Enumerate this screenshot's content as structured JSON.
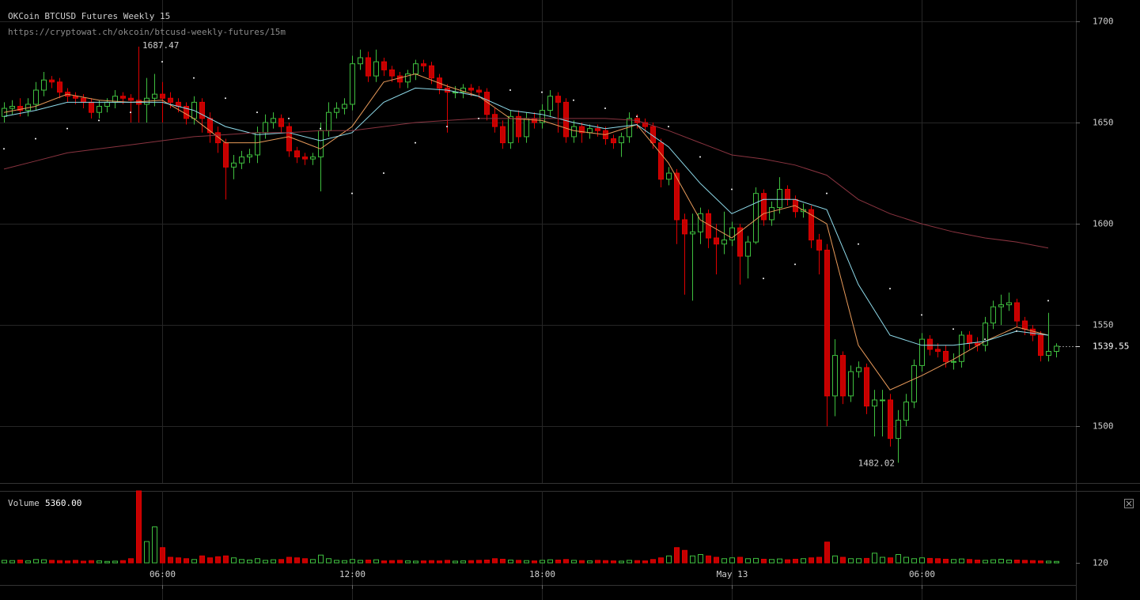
{
  "chart_data": [
    {
      "type": "candlestick",
      "title": "OKCoin BTCUSD Futures Weekly 15",
      "subtitle": "https://cryptowat.ch/okcoin/btcusd-weekly-futures/15m",
      "up_color": "#3fbf3f",
      "down_color": "#c40000",
      "xlim": [
        0.875,
        34.875
      ],
      "xticks": [
        {
          "value": 6,
          "label": "06:00"
        },
        {
          "value": 12,
          "label": "12:00"
        },
        {
          "value": 18,
          "label": "18:00"
        },
        {
          "value": 24,
          "label": "May 13"
        },
        {
          "value": 30,
          "label": "06:00"
        }
      ],
      "ylim": [
        1472,
        1710.5
      ],
      "yticks": [
        1500,
        1550,
        1600,
        1650,
        1700
      ],
      "grid": true,
      "x": [
        1,
        1.25,
        1.5,
        1.75,
        2,
        2.25,
        2.5,
        2.75,
        3,
        3.25,
        3.5,
        3.75,
        4,
        4.25,
        4.5,
        4.75,
        5,
        5.25,
        5.5,
        5.75,
        6,
        6.25,
        6.5,
        6.75,
        7,
        7.25,
        7.5,
        7.75,
        8,
        8.25,
        8.5,
        8.75,
        9,
        9.25,
        9.5,
        9.75,
        10,
        10.25,
        10.5,
        10.75,
        11,
        11.25,
        11.5,
        11.75,
        12,
        12.25,
        12.5,
        12.75,
        13,
        13.25,
        13.5,
        13.75,
        14,
        14.25,
        14.5,
        14.75,
        15,
        15.25,
        15.5,
        15.75,
        16,
        16.25,
        16.5,
        16.75,
        17,
        17.25,
        17.5,
        17.75,
        18,
        18.25,
        18.5,
        18.75,
        19,
        19.25,
        19.5,
        19.75,
        20,
        20.25,
        20.5,
        20.75,
        21,
        21.25,
        21.5,
        21.75,
        22,
        22.25,
        22.5,
        22.75,
        23,
        23.25,
        23.5,
        23.75,
        24,
        24.25,
        24.5,
        24.75,
        25,
        25.25,
        25.5,
        25.75,
        26,
        26.25,
        26.5,
        26.75,
        27,
        27.25,
        27.5,
        27.75,
        28,
        28.25,
        28.5,
        28.75,
        29,
        29.25,
        29.5,
        29.75,
        30,
        30.25,
        30.5,
        30.75,
        31,
        31.25,
        31.5,
        31.75,
        32,
        32.25,
        32.5,
        32.75,
        33,
        33.25,
        33.5,
        33.75,
        34,
        34.25
      ],
      "open": [
        1653,
        1657,
        1658,
        1656,
        1659,
        1666,
        1671,
        1670,
        1665,
        1663,
        1662,
        1660,
        1655,
        1658,
        1660,
        1663,
        1662,
        1661,
        1659,
        1662,
        1664,
        1662,
        1660,
        1658,
        1652,
        1660,
        1652,
        1645,
        1640,
        1628,
        1630,
        1633,
        1634,
        1645,
        1650,
        1652,
        1648,
        1636,
        1633,
        1632,
        1633,
        1646,
        1655,
        1657,
        1659,
        1679,
        1682,
        1673,
        1680,
        1676,
        1673,
        1670,
        1674,
        1679,
        1678,
        1672,
        1667,
        1665,
        1665,
        1667,
        1666,
        1665,
        1654,
        1648,
        1640,
        1653,
        1643,
        1652,
        1650,
        1656,
        1663,
        1660,
        1643,
        1648,
        1645,
        1647,
        1646,
        1642,
        1640,
        1643,
        1652,
        1650,
        1648,
        1640,
        1622,
        1625,
        1602,
        1595,
        1596,
        1605,
        1593,
        1590,
        1592,
        1598,
        1584,
        1591,
        1615,
        1602,
        1608,
        1617,
        1612,
        1606,
        1607,
        1592,
        1587,
        1515,
        1535,
        1515,
        1527,
        1529,
        1510,
        1513,
        1513,
        1494,
        1503,
        1512,
        1530,
        1543,
        1538,
        1537,
        1532,
        1532,
        1545,
        1541,
        1540,
        1551,
        1559,
        1560,
        1561,
        1552,
        1548,
        1545,
        1535,
        1537
      ],
      "high": [
        1660,
        1661,
        1662,
        1662,
        1670,
        1675,
        1673,
        1672,
        1667,
        1665,
        1664,
        1662,
        1661,
        1662,
        1666,
        1665,
        1664,
        1687.47,
        1672,
        1674,
        1670,
        1665,
        1662,
        1660,
        1663,
        1662,
        1655,
        1648,
        1642,
        1634,
        1636,
        1637,
        1648,
        1654,
        1655,
        1654,
        1650,
        1638,
        1635,
        1635,
        1650,
        1660,
        1660,
        1662,
        1683,
        1686,
        1685,
        1686,
        1682,
        1678,
        1675,
        1676,
        1681,
        1681,
        1680,
        1674,
        1669,
        1668,
        1669,
        1669,
        1668,
        1667,
        1657,
        1651,
        1656,
        1656,
        1655,
        1655,
        1659,
        1666,
        1665,
        1662,
        1651,
        1650,
        1649,
        1649,
        1648,
        1644,
        1645,
        1655,
        1654,
        1652,
        1650,
        1642,
        1628,
        1627,
        1605,
        1605,
        1608,
        1607,
        1600,
        1606,
        1601,
        1600,
        1594,
        1618,
        1617,
        1611,
        1623,
        1619,
        1614,
        1610,
        1609,
        1595,
        1590,
        1543,
        1537,
        1530,
        1532,
        1531,
        1518,
        1518,
        1516,
        1508,
        1516,
        1533,
        1546,
        1545,
        1541,
        1540,
        1536,
        1547,
        1547,
        1544,
        1554,
        1562,
        1565,
        1566,
        1563,
        1554,
        1550,
        1547,
        1556,
        1541
      ],
      "low": [
        1650,
        1654,
        1653,
        1653,
        1656,
        1663,
        1667,
        1662,
        1660,
        1659,
        1657,
        1652,
        1652,
        1655,
        1657,
        1659,
        1650,
        1650,
        1650,
        1658,
        1650,
        1657,
        1655,
        1649,
        1649,
        1645,
        1640,
        1635,
        1612,
        1622,
        1627,
        1630,
        1630,
        1642,
        1647,
        1645,
        1633,
        1630,
        1629,
        1629,
        1616,
        1643,
        1652,
        1654,
        1656,
        1676,
        1670,
        1670,
        1673,
        1670,
        1667,
        1667,
        1671,
        1675,
        1669,
        1664,
        1645,
        1662,
        1662,
        1663,
        1662,
        1651,
        1645,
        1637,
        1637,
        1640,
        1640,
        1647,
        1647,
        1653,
        1645,
        1640,
        1640,
        1640,
        1642,
        1643,
        1639,
        1637,
        1633,
        1640,
        1647,
        1645,
        1637,
        1618,
        1619,
        1590,
        1565,
        1562,
        1590,
        1588,
        1575,
        1585,
        1589,
        1570,
        1573,
        1590,
        1599,
        1599,
        1605,
        1609,
        1603,
        1603,
        1588,
        1575,
        1500,
        1505,
        1511,
        1512,
        1524,
        1506,
        1495,
        1495,
        1490,
        1482.02,
        1500,
        1509,
        1527,
        1535,
        1534,
        1529,
        1528,
        1529,
        1538,
        1537,
        1537,
        1548,
        1550,
        1557,
        1549,
        1545,
        1542,
        1532,
        1532,
        1534
      ],
      "close": [
        1657,
        1658,
        1656,
        1659,
        1666,
        1671,
        1670,
        1665,
        1663,
        1662,
        1660,
        1655,
        1658,
        1660,
        1663,
        1662,
        1661,
        1659,
        1662,
        1664,
        1662,
        1660,
        1658,
        1652,
        1660,
        1652,
        1645,
        1640,
        1628,
        1630,
        1633,
        1634,
        1645,
        1650,
        1652,
        1648,
        1636,
        1633,
        1632,
        1633,
        1646,
        1655,
        1657,
        1659,
        1679,
        1682,
        1673,
        1680,
        1676,
        1673,
        1670,
        1674,
        1679,
        1678,
        1672,
        1667,
        1665,
        1665,
        1667,
        1666,
        1665,
        1654,
        1648,
        1640,
        1653,
        1643,
        1652,
        1650,
        1656,
        1663,
        1660,
        1643,
        1648,
        1645,
        1647,
        1646,
        1642,
        1640,
        1643,
        1652,
        1650,
        1648,
        1640,
        1622,
        1625,
        1602,
        1595,
        1596,
        1605,
        1593,
        1590,
        1592,
        1598,
        1584,
        1591,
        1615,
        1602,
        1608,
        1617,
        1612,
        1606,
        1607,
        1592,
        1587,
        1515,
        1535,
        1515,
        1527,
        1529,
        1510,
        1513,
        1513,
        1494,
        1503,
        1512,
        1530,
        1543,
        1538,
        1537,
        1532,
        1532,
        1545,
        1541,
        1540,
        1551,
        1559,
        1560,
        1561,
        1552,
        1548,
        1545,
        1535,
        1537,
        1539.55
      ],
      "overlays": [
        {
          "type": "line",
          "color": "#e89a5a",
          "x": [
            1,
            2,
            3,
            4,
            5,
            6,
            7,
            8,
            9,
            10,
            11,
            12,
            13,
            14,
            15,
            16,
            17,
            18,
            19,
            20,
            21,
            22,
            23,
            24,
            25,
            26,
            27,
            28,
            29,
            30,
            31,
            32,
            33,
            34
          ],
          "values": [
            1655,
            1658,
            1664,
            1661,
            1660,
            1661,
            1652,
            1640,
            1640,
            1643,
            1637,
            1648,
            1670,
            1674,
            1668,
            1663,
            1652,
            1651,
            1646,
            1644,
            1649,
            1630,
            1602,
            1593,
            1605,
            1609,
            1600,
            1540,
            1518,
            1525,
            1533,
            1542,
            1549,
            1545
          ]
        },
        {
          "type": "line",
          "color": "#8fdcec",
          "x": [
            1,
            2,
            3,
            4,
            5,
            6,
            7,
            8,
            9,
            10,
            11,
            12,
            13,
            14,
            15,
            16,
            17,
            18,
            19,
            20,
            21,
            22,
            23,
            24,
            25,
            26,
            27,
            28,
            29,
            30,
            31,
            32,
            33,
            34
          ],
          "values": [
            1653,
            1656,
            1660,
            1660,
            1660,
            1660,
            1656,
            1648,
            1644,
            1645,
            1641,
            1645,
            1660,
            1667,
            1666,
            1663,
            1656,
            1654,
            1650,
            1647,
            1649,
            1638,
            1620,
            1605,
            1612,
            1612,
            1607,
            1570,
            1545,
            1540,
            1540,
            1542,
            1547,
            1545
          ]
        },
        {
          "type": "line",
          "color": "#8a3440",
          "x": [
            1,
            2,
            3,
            4,
            5,
            6,
            7,
            8,
            9,
            10,
            11,
            12,
            13,
            14,
            15,
            16,
            17,
            18,
            19,
            20,
            21,
            22,
            23,
            24,
            25,
            26,
            27,
            28,
            29,
            30,
            31,
            32,
            33,
            34
          ],
          "values": [
            1627,
            1631,
            1635,
            1637,
            1639,
            1641,
            1643,
            1644,
            1645,
            1645,
            1646,
            1646,
            1648,
            1650,
            1651,
            1652,
            1652,
            1652,
            1652,
            1652,
            1651,
            1646,
            1640,
            1634,
            1632,
            1629,
            1624,
            1612,
            1605,
            1600,
            1596,
            1593,
            1591,
            1588
          ]
        },
        {
          "type": "dots",
          "color": "#ffffff",
          "x": [
            1,
            2,
            3,
            4,
            5,
            6,
            7,
            8,
            9,
            10,
            11,
            12,
            13,
            14,
            15,
            16,
            17,
            18,
            19,
            20,
            21,
            22,
            23,
            24,
            25,
            26,
            27,
            28,
            29,
            30,
            31,
            32,
            33,
            34
          ],
          "values": [
            1637,
            1642,
            1647,
            1651,
            1655,
            1680,
            1672,
            1662,
            1655,
            1652,
            1647,
            1615,
            1625,
            1640,
            1648,
            1652,
            1666,
            1665,
            1661,
            1657,
            1653,
            1648,
            1633,
            1617,
            1573,
            1580,
            1615,
            1590,
            1568,
            1555,
            1548,
            1543,
            1547,
            1562
          ]
        }
      ]
    },
    {
      "type": "bar",
      "title": "Volume",
      "readout": "5360.00",
      "ylim": [
        0,
        26000
      ],
      "yticks": [
        120
      ],
      "values": [
        900,
        800,
        1000,
        700,
        1200,
        1100,
        900,
        800,
        700,
        900,
        600,
        800,
        700,
        500,
        600,
        800,
        1500,
        26000,
        7700,
        13000,
        5500,
        2000,
        1800,
        1500,
        1200,
        2500,
        1800,
        2200,
        2500,
        1800,
        1200,
        1000,
        1500,
        900,
        1100,
        1200,
        2000,
        1800,
        1500,
        1200,
        2800,
        1500,
        900,
        800,
        1200,
        900,
        1000,
        1100,
        700,
        800,
        900,
        700,
        600,
        700,
        800,
        700,
        900,
        600,
        700,
        800,
        900,
        1000,
        1500,
        1300,
        1000,
        900,
        800,
        700,
        900,
        1100,
        1000,
        1200,
        900,
        800,
        700,
        900,
        800,
        700,
        600,
        900,
        800,
        700,
        1200,
        1800,
        2500,
        5500,
        4500,
        2500,
        3000,
        2500,
        2000,
        1500,
        1800,
        2000,
        1500,
        1600,
        1300,
        1200,
        1400,
        1100,
        1300,
        1500,
        1800,
        2000,
        7500,
        2500,
        2000,
        1500,
        1500,
        1600,
        3500,
        2000,
        1800,
        3000,
        2000,
        1500,
        1800,
        1600,
        1500,
        1300,
        1200,
        1400,
        1200,
        1000,
        900,
        1100,
        1300,
        1000,
        1000,
        900,
        800,
        700,
        600,
        500
      ]
    }
  ]
}
